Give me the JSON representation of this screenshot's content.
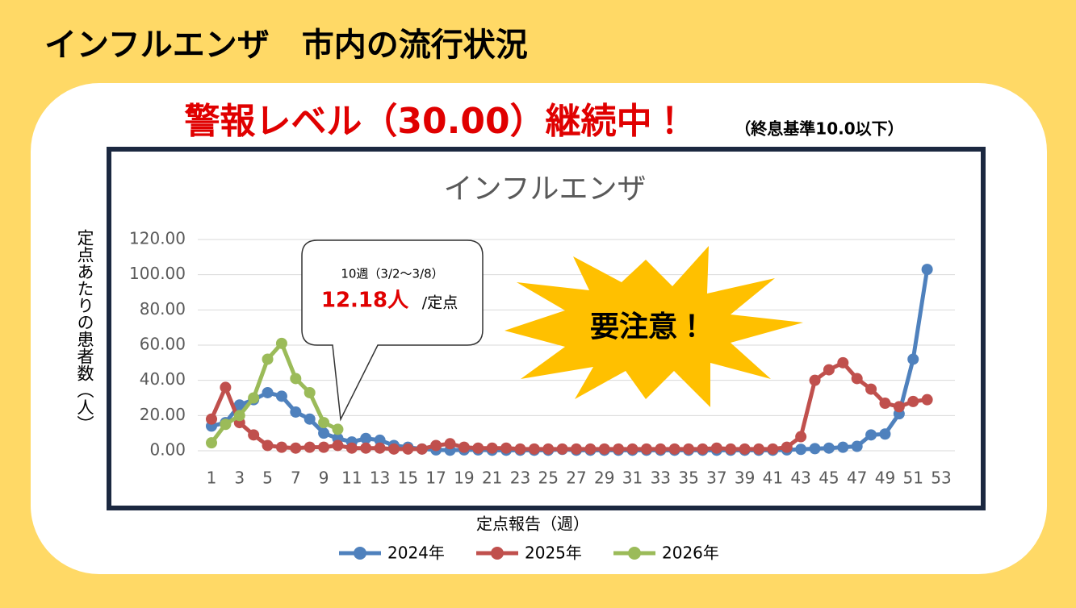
{
  "header": {
    "title": "インフルエンザ　市内の流行状況"
  },
  "alert": {
    "main": "警報レベル（30.00）継続中！",
    "note": "（終息基準10.0以下）"
  },
  "callout": {
    "week": "10週（3/2～3/8）",
    "value": "12.18人",
    "unit": "/定点"
  },
  "burst": {
    "text": "要注意！"
  },
  "chart_data": {
    "type": "line",
    "title": "インフルエンザ",
    "y_label": "定点あたりの患者数（人）",
    "x_label": "定点報告（週）",
    "categories": [
      "1",
      null,
      "3",
      null,
      "5",
      null,
      "7",
      null,
      "9",
      null,
      "11",
      null,
      "13",
      null,
      "15",
      null,
      "17",
      null,
      "19",
      null,
      "21",
      null,
      "23",
      null,
      "25",
      null,
      "27",
      null,
      "29",
      null,
      "31",
      null,
      "33",
      null,
      "35",
      null,
      "37",
      null,
      "39",
      null,
      "41",
      null,
      "43",
      null,
      "45",
      null,
      "47",
      null,
      "49",
      null,
      "51",
      null,
      "53"
    ],
    "ylim": [
      0,
      120
    ],
    "yticks": [
      {
        "value": 0,
        "label": "0.00"
      },
      {
        "value": 20,
        "label": "20.00"
      },
      {
        "value": 40,
        "label": "40.00"
      },
      {
        "value": 60,
        "label": "60.00"
      },
      {
        "value": 80,
        "label": "80.00"
      },
      {
        "value": 100,
        "label": "100.00"
      },
      {
        "value": 120,
        "label": "120.00"
      }
    ],
    "grid": true,
    "legend": "bottom",
    "series": [
      {
        "name": "2024年",
        "color": "#4f81bd",
        "values": [
          14,
          16,
          26,
          29,
          33,
          31,
          22,
          18,
          10,
          7,
          5,
          7,
          6,
          3,
          2,
          1,
          0.5,
          0.3,
          0.5,
          0.5,
          0.3,
          0.3,
          0.3,
          0.3,
          0.3,
          0.8,
          0.3,
          0.3,
          0.3,
          0.3,
          0.3,
          0.3,
          0.3,
          0.3,
          0.3,
          0.3,
          0.3,
          0.3,
          0.3,
          0.3,
          0.3,
          0.5,
          0.8,
          1.2,
          1.5,
          2,
          2.5,
          9,
          9.5,
          21,
          52,
          103,
          null
        ]
      },
      {
        "name": "2025年",
        "color": "#c0504d",
        "values": [
          18,
          36,
          16,
          9,
          3,
          2,
          1.5,
          2,
          2,
          3,
          1.5,
          1.5,
          1.5,
          1,
          1,
          1,
          3,
          4,
          2,
          1.5,
          1.5,
          1.5,
          1,
          1,
          1,
          1,
          1,
          1,
          1,
          1,
          1,
          1,
          1,
          1,
          1,
          1,
          1.5,
          1,
          1,
          1,
          1,
          2,
          8,
          40,
          46,
          50,
          41,
          35,
          27,
          25,
          28,
          29,
          null
        ]
      },
      {
        "name": "2026年",
        "color": "#9bbb59",
        "values": [
          4.5,
          15,
          20,
          30,
          52,
          61,
          41,
          33,
          16,
          12.18,
          null,
          null,
          null,
          null,
          null,
          null,
          null,
          null,
          null,
          null,
          null,
          null,
          null,
          null,
          null,
          null,
          null,
          null,
          null,
          null,
          null,
          null,
          null,
          null,
          null,
          null,
          null,
          null,
          null,
          null,
          null,
          null,
          null,
          null,
          null,
          null,
          null,
          null,
          null,
          null,
          null,
          null,
          null
        ]
      }
    ]
  }
}
